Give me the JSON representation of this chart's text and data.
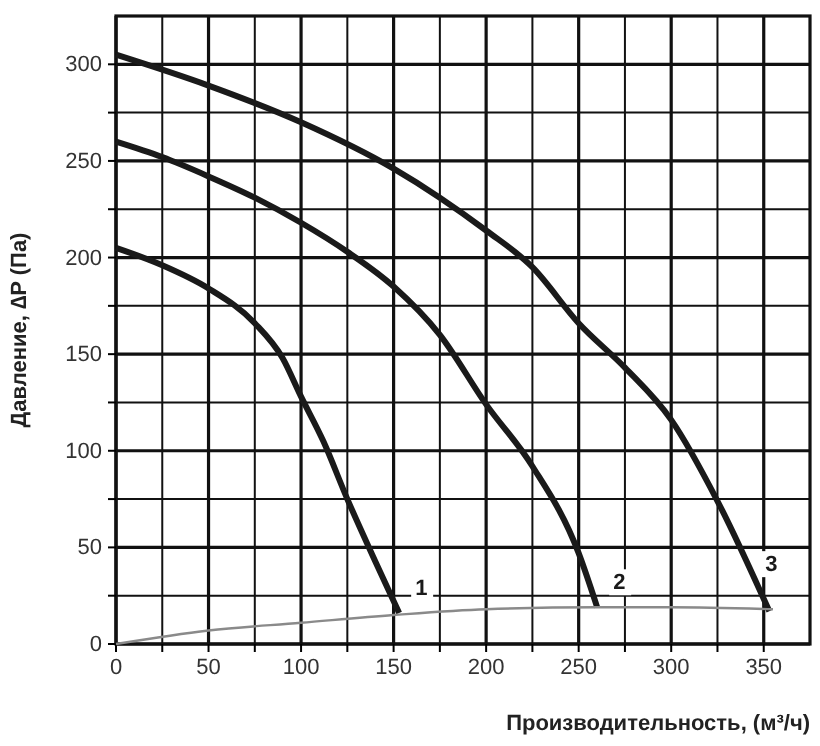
{
  "chart_data": {
    "type": "line",
    "xlabel": "Производительность, (м³/ч)",
    "ylabel": "Давление, ∆P (Па)",
    "xlim": [
      0,
      375
    ],
    "ylim": [
      0,
      325
    ],
    "xticks": [
      0,
      {
        "value": 25,
        "label": null
      },
      50,
      {
        "value": 75,
        "label": null
      },
      100,
      {
        "value": 125,
        "label": null
      },
      150,
      {
        "value": 175,
        "label": null
      },
      200,
      {
        "value": 225,
        "label": null
      },
      250,
      {
        "value": 275,
        "label": null
      },
      300,
      {
        "value": 325,
        "label": null
      },
      350
    ],
    "yticks": [
      0,
      {
        "value": 25,
        "label": null
      },
      50,
      {
        "value": 75,
        "label": null
      },
      100,
      {
        "value": 125,
        "label": null
      },
      150,
      {
        "value": 175,
        "label": null
      },
      200,
      {
        "value": 225,
        "label": null
      },
      250,
      {
        "value": 275,
        "label": null
      },
      300
    ],
    "grid": true,
    "marker": "none",
    "line_style": "solid",
    "series": [
      {
        "name": "1",
        "color": "#1a1a1a",
        "x": [
          0,
          25,
          50,
          75,
          90,
          100,
          112,
          125,
          140,
          153
        ],
        "values": [
          205,
          196,
          184,
          166,
          148,
          128,
          105,
          75,
          43,
          16
        ]
      },
      {
        "name": "2",
        "color": "#1a1a1a",
        "x": [
          0,
          25,
          50,
          75,
          100,
          125,
          150,
          175,
          200,
          225,
          250,
          260
        ],
        "values": [
          260,
          252,
          242,
          231,
          218,
          203,
          185,
          160,
          124,
          92,
          47,
          19
        ]
      },
      {
        "name": "3",
        "color": "#1a1a1a",
        "x": [
          0,
          50,
          100,
          150,
          175,
          200,
          225,
          250,
          275,
          300,
          325,
          353
        ],
        "values": [
          305,
          289,
          270,
          246,
          231,
          214,
          195,
          166,
          143,
          116,
          74,
          17
        ]
      },
      {
        "color": "#8a8a8a",
        "x": [
          0,
          50,
          100,
          150,
          200,
          260,
          300,
          355
        ],
        "values": [
          0,
          7,
          11,
          15,
          18,
          19,
          19,
          18
        ]
      }
    ]
  }
}
